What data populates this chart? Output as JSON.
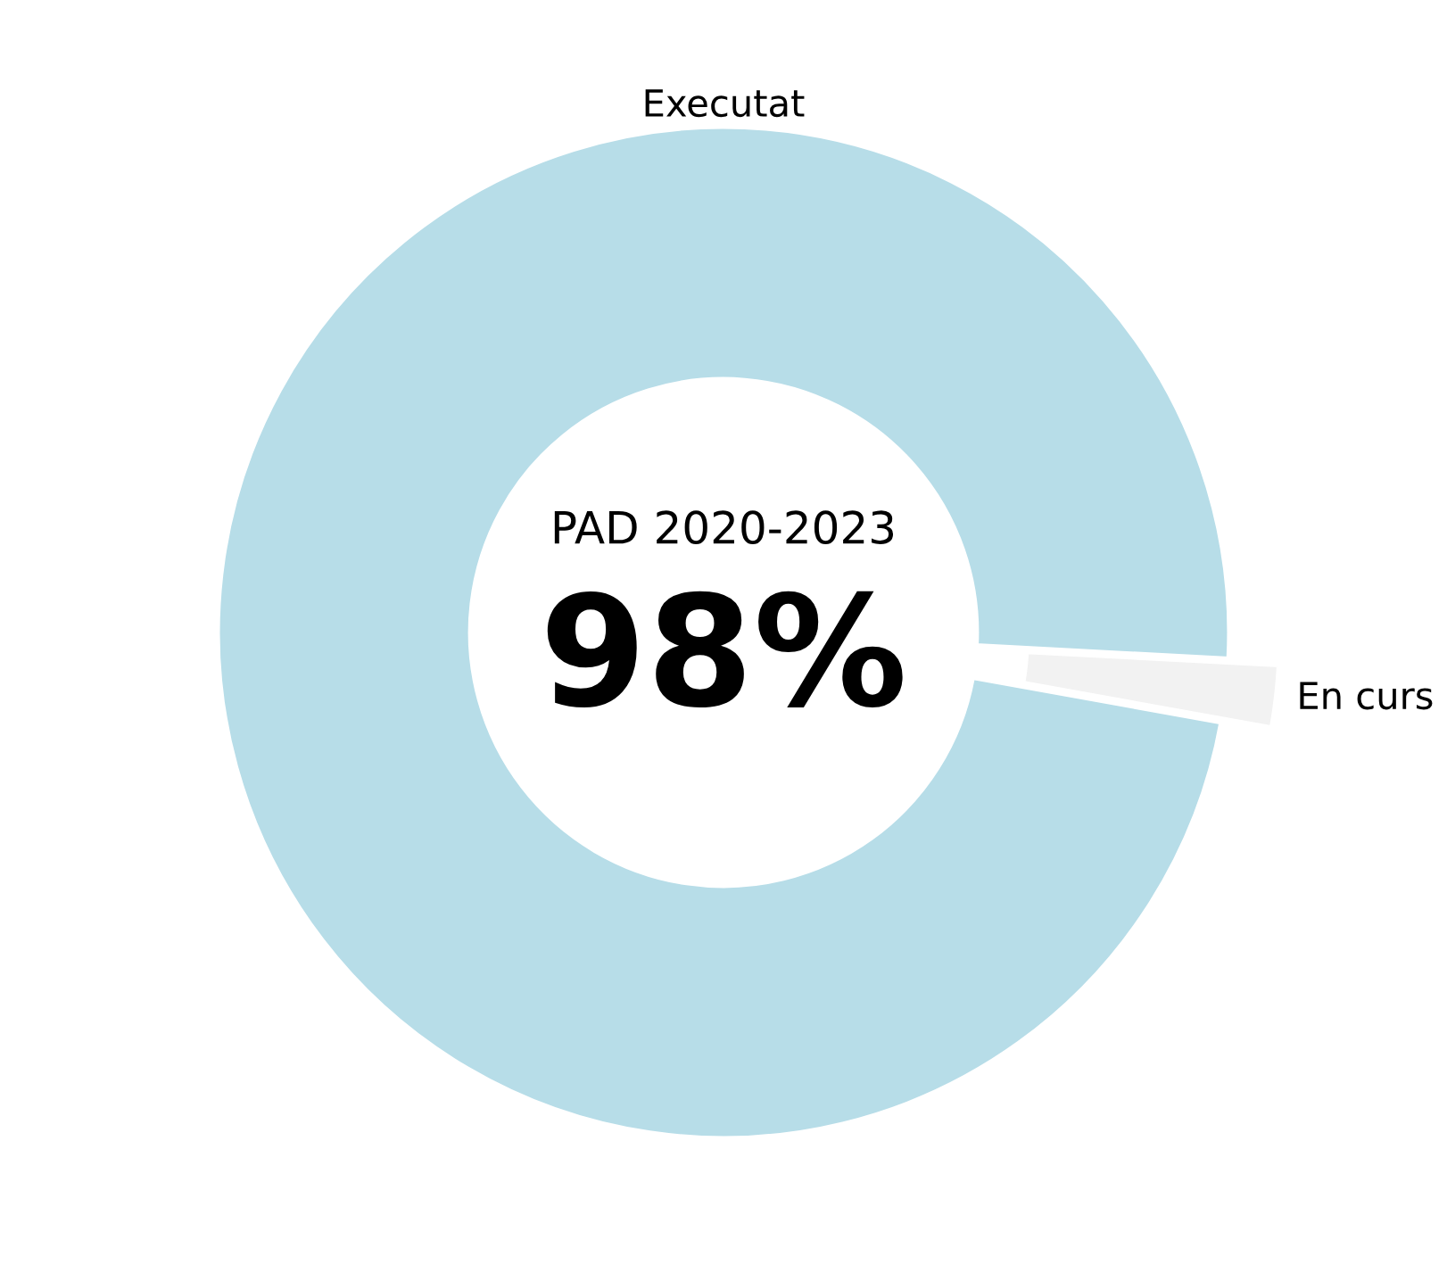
{
  "chart_data": {
    "type": "donut",
    "categories": [
      "Executat",
      "En curs"
    ],
    "values": [
      98,
      2
    ],
    "colors": [
      "#b7dde8",
      "#f2f2f2"
    ],
    "annotations": [
      "PAD 2020-2023",
      "98%"
    ],
    "legend": false
  }
}
